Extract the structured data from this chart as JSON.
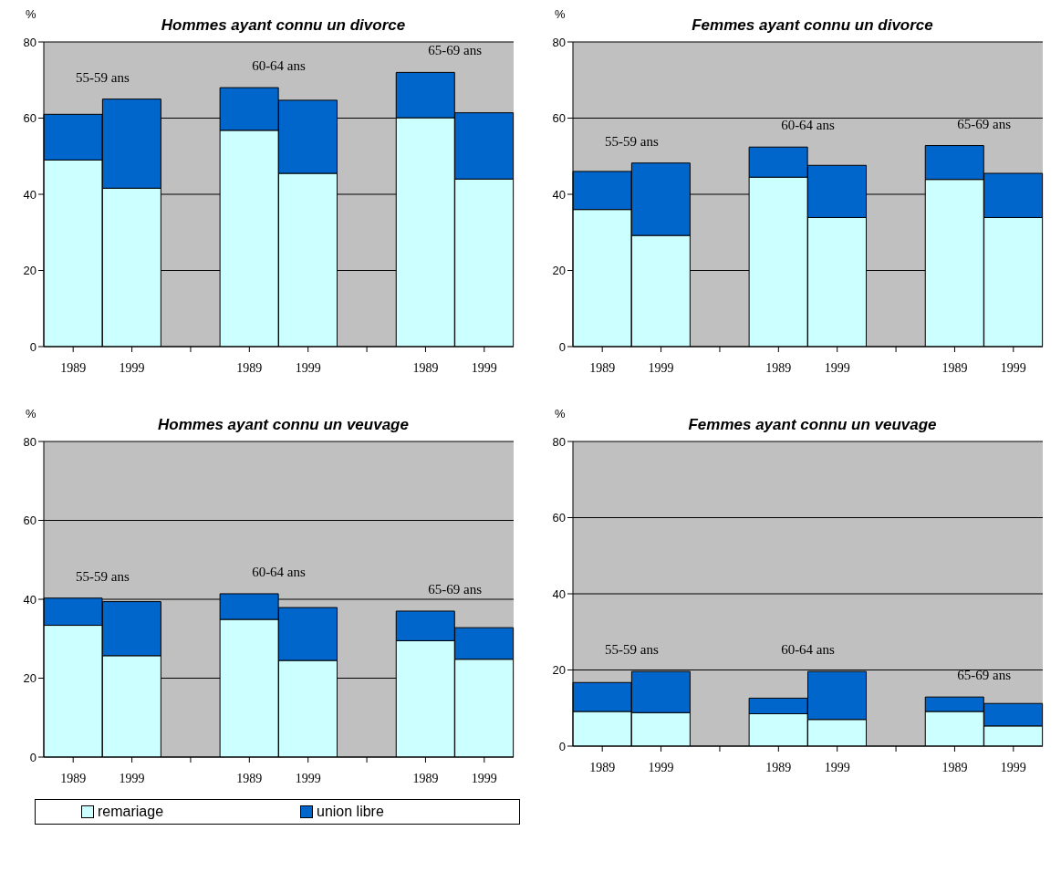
{
  "chart_data": [
    {
      "type": "bar",
      "title": "Hommes ayant connu un divorce",
      "ylabel": "%",
      "stacked": true,
      "categories": [
        "1989",
        "1999",
        null,
        "1989",
        "1999",
        null,
        "1989",
        "1999"
      ],
      "ylim": [
        0,
        80
      ],
      "yticks": [
        0,
        20,
        40,
        60,
        80
      ],
      "grid": "y",
      "legend": false,
      "annotations": [
        "55-59 ans",
        "60-64 ans",
        "65-69 ans"
      ],
      "series": [
        {
          "color": "#ccffff",
          "values": [
            49,
            41.6,
            null,
            56.8,
            45.5,
            null,
            60.1,
            44.0
          ]
        },
        {
          "color": "#0066cc",
          "values": [
            12,
            23.4,
            null,
            11.2,
            19.2,
            null,
            11.9,
            17.4
          ]
        }
      ]
    },
    {
      "type": "bar",
      "title": "Femmes ayant connu un divorce",
      "ylabel": "%",
      "stacked": true,
      "categories": [
        "1989",
        "1999",
        null,
        "1989",
        "1999",
        null,
        "1989",
        "1999"
      ],
      "ylim": [
        0,
        80
      ],
      "yticks": [
        0,
        20,
        40,
        60,
        80
      ],
      "grid": "y",
      "legend": false,
      "annotations": [
        "55-59 ans",
        "60-64 ans",
        "65-69 ans"
      ],
      "series": [
        {
          "color": "#ccffff",
          "values": [
            36.0,
            29.2,
            null,
            44.5,
            33.9,
            null,
            43.9,
            33.9
          ]
        },
        {
          "color": "#0066cc",
          "values": [
            10,
            19,
            null,
            7.9,
            13.7,
            null,
            8.9,
            11.6
          ]
        }
      ]
    },
    {
      "type": "bar",
      "title": "Hommes ayant connu un veuvage",
      "ylabel": "%",
      "stacked": true,
      "categories": [
        "1989",
        "1999",
        null,
        "1989",
        "1999",
        null,
        "1989",
        "1999"
      ],
      "ylim": [
        0,
        80
      ],
      "yticks": [
        0,
        20,
        40,
        60,
        80
      ],
      "grid": "y",
      "legend": "bottom",
      "annotations": [
        "55-59 ans",
        "60-64 ans",
        "65-69 ans"
      ],
      "series": [
        {
          "name": "remariage",
          "color": "#ccffff",
          "values": [
            33.4,
            25.7,
            null,
            34.9,
            24.5,
            null,
            29.5,
            24.8
          ]
        },
        {
          "name": "union libre",
          "color": "#0066cc",
          "values": [
            6.9,
            13.7,
            null,
            6.5,
            13.4,
            null,
            7.5,
            8.0
          ]
        }
      ]
    },
    {
      "type": "bar",
      "title": "Femmes ayant connu un veuvage",
      "ylabel": "%",
      "stacked": true,
      "categories": [
        "1989",
        "1999",
        null,
        "1989",
        "1999",
        null,
        "1989",
        "1999"
      ],
      "ylim": [
        0,
        80
      ],
      "yticks": [
        0,
        20,
        40,
        60,
        80
      ],
      "grid": "y",
      "legend": false,
      "annotations": [
        "55-59 ans",
        "60-64 ans",
        "65-69 ans"
      ],
      "series": [
        {
          "color": "#ccffff",
          "values": [
            9.1,
            8.8,
            null,
            8.5,
            7.0,
            null,
            9.1,
            5.3
          ]
        },
        {
          "color": "#0066cc",
          "values": [
            7.6,
            10.8,
            null,
            4.1,
            12.6,
            null,
            3.8,
            5.9
          ]
        }
      ]
    }
  ]
}
